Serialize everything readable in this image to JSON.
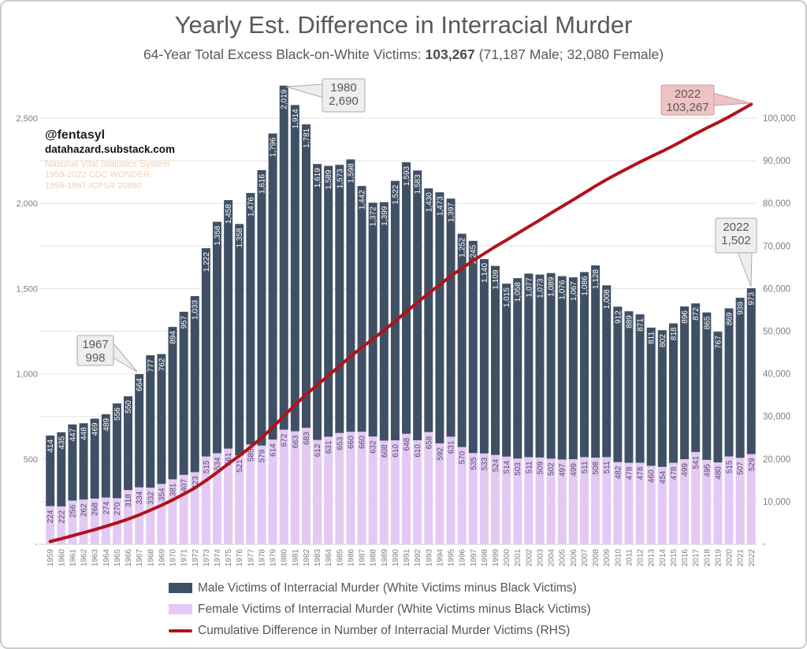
{
  "header": {
    "title": "Yearly Est. Difference in Interracial Murder",
    "subtitle_prefix": "64-Year Total Excess Black-on-White Victims: ",
    "subtitle_total": "103,267",
    "subtitle_suffix": " (71,187 Male; 32,080 Female)"
  },
  "watermark": {
    "handle": "@fentasyl",
    "site": "datahazard.substack.com",
    "source_lines": [
      "National Vital Statistics System",
      "1959-2022 CDC WONDER",
      "1959-1967 ICPSR 20880"
    ]
  },
  "chart_data": {
    "type": "bar",
    "stacked": true,
    "title": "Yearly Est. Difference in Interracial Murder",
    "categories": [
      1959,
      1960,
      1961,
      1962,
      1963,
      1964,
      1965,
      1966,
      1967,
      1968,
      1969,
      1970,
      1971,
      1972,
      1973,
      1974,
      1975,
      1976,
      1977,
      1978,
      1979,
      1980,
      1981,
      1982,
      1983,
      1984,
      1985,
      1986,
      1987,
      1988,
      1989,
      1990,
      1991,
      1992,
      1993,
      1994,
      1995,
      1996,
      1997,
      1998,
      1999,
      2000,
      2001,
      2002,
      2003,
      2004,
      2005,
      2006,
      2007,
      2008,
      2009,
      2010,
      2011,
      2012,
      2013,
      2014,
      2015,
      2016,
      2017,
      2018,
      2019,
      2020,
      2021,
      2022
    ],
    "series": [
      {
        "name": "Male Victims of Interracial Murder (White Victims minus Black Victims)",
        "color": "#405064",
        "label_color": "#ffffff",
        "axis": "left",
        "values": [
          414,
          435,
          447,
          448,
          469,
          489,
          556,
          550,
          664,
          777,
          762,
          894,
          957,
          1033,
          1222,
          1358,
          1458,
          1358,
          1476,
          1616,
          1796,
          2019,
          1914,
          1781,
          1619,
          1589,
          1573,
          1598,
          1442,
          1372,
          1399,
          1522,
          1593,
          1583,
          1430,
          1473,
          1397,
          1252,
          1245,
          1140,
          1109,
          1015,
          1058,
          1077,
          1073,
          1089,
          1076,
          1067,
          1086,
          1128,
          1008,
          912,
          889,
          871,
          811,
          802,
          818,
          896,
          872,
          865,
          767,
          869,
          939,
          973
        ]
      },
      {
        "name": "Female Victims of Interracial Murder (White Victims minus Black Victims)",
        "color": "#e4c9f4",
        "label_color": "#544a6d",
        "axis": "left",
        "values": [
          224,
          222,
          256,
          262,
          268,
          274,
          270,
          318,
          334,
          332,
          354,
          381,
          407,
          423,
          515,
          534,
          561,
          521,
          585,
          579,
          614,
          672,
          663,
          683,
          612,
          631,
          653,
          660,
          660,
          632,
          608,
          610,
          648,
          610,
          658,
          592,
          631,
          570,
          535,
          533,
          524,
          514,
          503,
          511,
          509,
          502,
          497,
          499,
          511,
          508,
          511,
          482,
          478,
          478,
          460,
          454,
          478,
          499,
          541,
          495,
          480,
          515,
          507,
          529
        ]
      }
    ],
    "line": {
      "name": "Cumulative Difference in Number of Interracial Murder Victims (RHS)",
      "color": "#b1121a",
      "axis": "right",
      "derivation": "cumulative sum of male+female yearly values",
      "end_value": 103267
    },
    "left_axis": {
      "ticks": [
        "-",
        "500",
        "1,000",
        "1,500",
        "2,000",
        "2,500"
      ],
      "max": 2500
    },
    "right_axis": {
      "ticks": [
        "-",
        "10,000",
        "20,000",
        "30,000",
        "40,000",
        "50,000",
        "60,000",
        "70,000",
        "80,000",
        "90,000",
        "100,000"
      ],
      "max": 100000
    },
    "annotations": [
      {
        "lines": [
          "1967",
          "998"
        ],
        "style": "gray",
        "anchor": "bar-top-1967"
      },
      {
        "lines": [
          "1980",
          "2,690"
        ],
        "style": "gray",
        "anchor": "bar-top-1980"
      },
      {
        "lines": [
          "2022",
          "103,267"
        ],
        "style": "pink",
        "anchor": "line-end-2022"
      },
      {
        "lines": [
          "2022",
          "1,502"
        ],
        "style": "gray",
        "anchor": "bar-top-2022"
      }
    ],
    "grid": true,
    "legend_position": "bottom"
  },
  "legend": {
    "items": [
      {
        "label": "Male Victims of Interracial Murder (White Victims minus Black Victims)",
        "swatch": "rect",
        "color": "#405064"
      },
      {
        "label": "Female Victims of Interracial Murder (White Victims minus Black Victims)",
        "swatch": "rect",
        "color": "#e4c9f4"
      },
      {
        "label": "Cumulative Difference in Number of Interracial Murder Victims (RHS)",
        "swatch": "line",
        "color": "#b1121a"
      }
    ]
  },
  "colors": {
    "grid": "#e3e3e3",
    "axis_line": "#c8c8c8",
    "tick_text": "#7f7f7f",
    "annotation_gray_fill": "#eeeeee",
    "annotation_gray_stroke": "#ababab",
    "annotation_pink_fill": "#efc3c3",
    "annotation_pink_stroke": "#c79c9c",
    "annotation_text": "#595959"
  }
}
